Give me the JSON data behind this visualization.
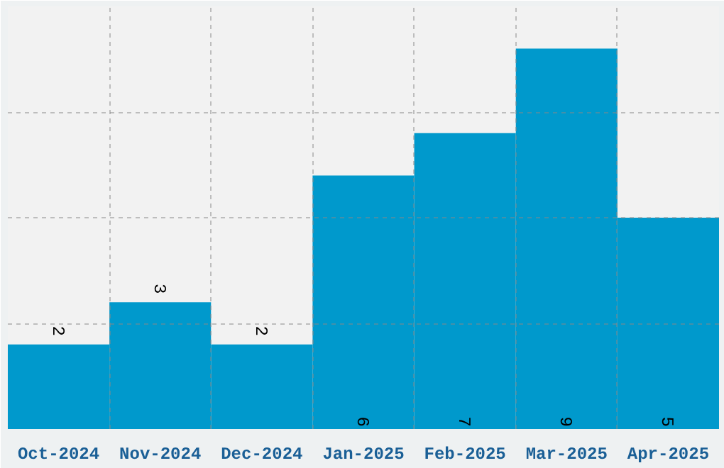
{
  "chart_data": {
    "type": "bar",
    "categories": [
      "Oct-2024",
      "Nov-2024",
      "Dec-2024",
      "Jan-2025",
      "Feb-2025",
      "Mar-2025",
      "Apr-2025"
    ],
    "values": [
      2,
      3,
      2,
      6,
      7,
      9,
      5
    ],
    "color": "#0099cc",
    "ylim": [
      0,
      10
    ],
    "yticks": [
      0,
      2.5,
      5,
      7.5,
      10
    ],
    "tick_labels": "x",
    "grid": true,
    "data_labels": true
  }
}
